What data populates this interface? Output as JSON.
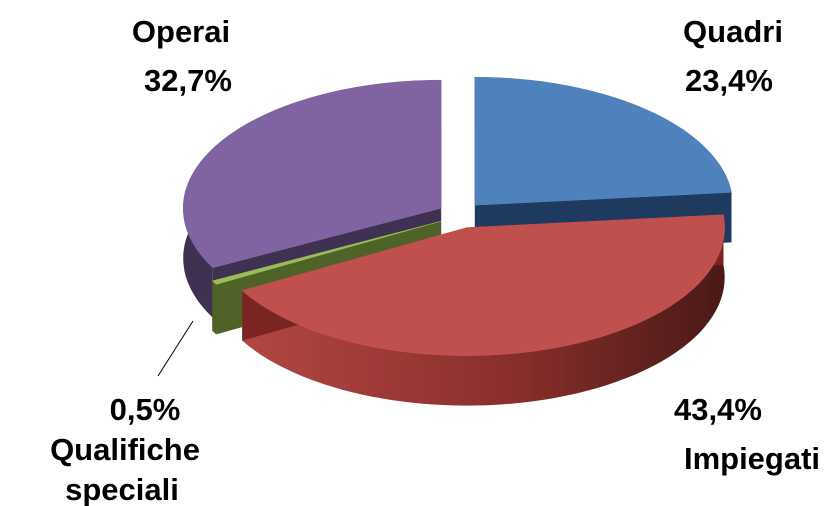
{
  "chart_data": {
    "type": "pie",
    "style": "3d-exploded",
    "slices": [
      {
        "label": "Quadri",
        "value": 23.4,
        "value_text": "23,4%",
        "color": "#4F81BD",
        "side_color": "#1F3A5F"
      },
      {
        "label": "Impiegati",
        "value": 43.4,
        "value_text": "43,4%",
        "color": "#C0504D",
        "side_color": "#7B2523"
      },
      {
        "label": "Qualifiche speciali",
        "value": 0.5,
        "value_text": "0,5%",
        "color": "#9BBB59",
        "side_color": "#4F6228"
      },
      {
        "label": "Operai",
        "value": 32.7,
        "value_text": "32,7%",
        "color": "#8064A2",
        "side_color": "#3F3151"
      }
    ],
    "legend": "none"
  }
}
